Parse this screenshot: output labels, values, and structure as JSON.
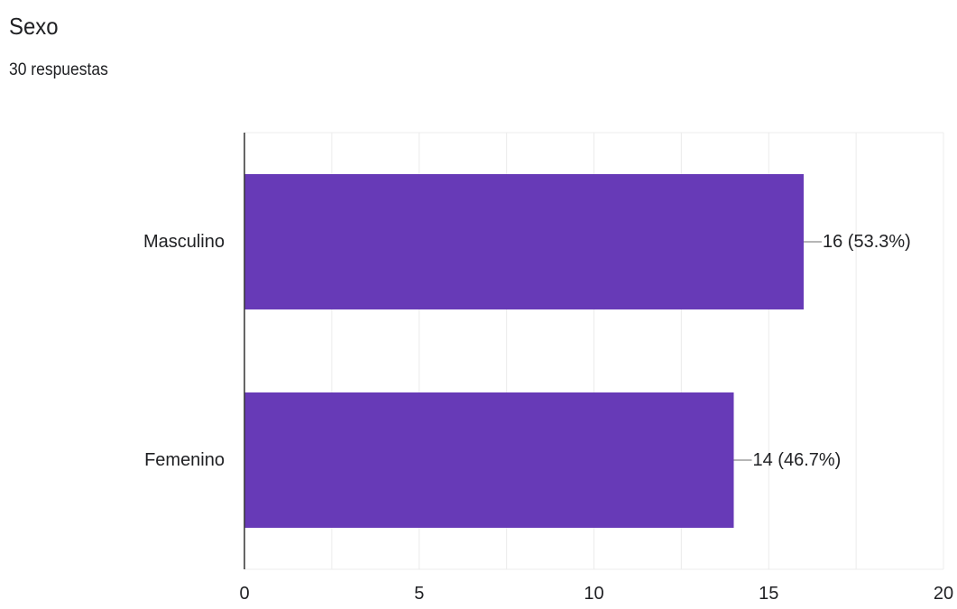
{
  "header": {
    "title": "Sexo",
    "response_count": "30 respuestas"
  },
  "chart_data": {
    "type": "bar",
    "orientation": "horizontal",
    "categories": [
      "Masculino",
      "Femenino"
    ],
    "values": [
      16,
      14
    ],
    "data_labels": [
      "16 (53.3%)",
      "14 (46.7%)"
    ],
    "xlim": [
      0,
      20
    ],
    "xticks": [
      0,
      5,
      10,
      15,
      20
    ],
    "minor_gridlines": true,
    "grid": true,
    "legend": "none",
    "colors": {
      "bar": "#673ab7",
      "grid": "#ececec",
      "axis": "#333333",
      "leader": "#9e9e9e"
    }
  }
}
